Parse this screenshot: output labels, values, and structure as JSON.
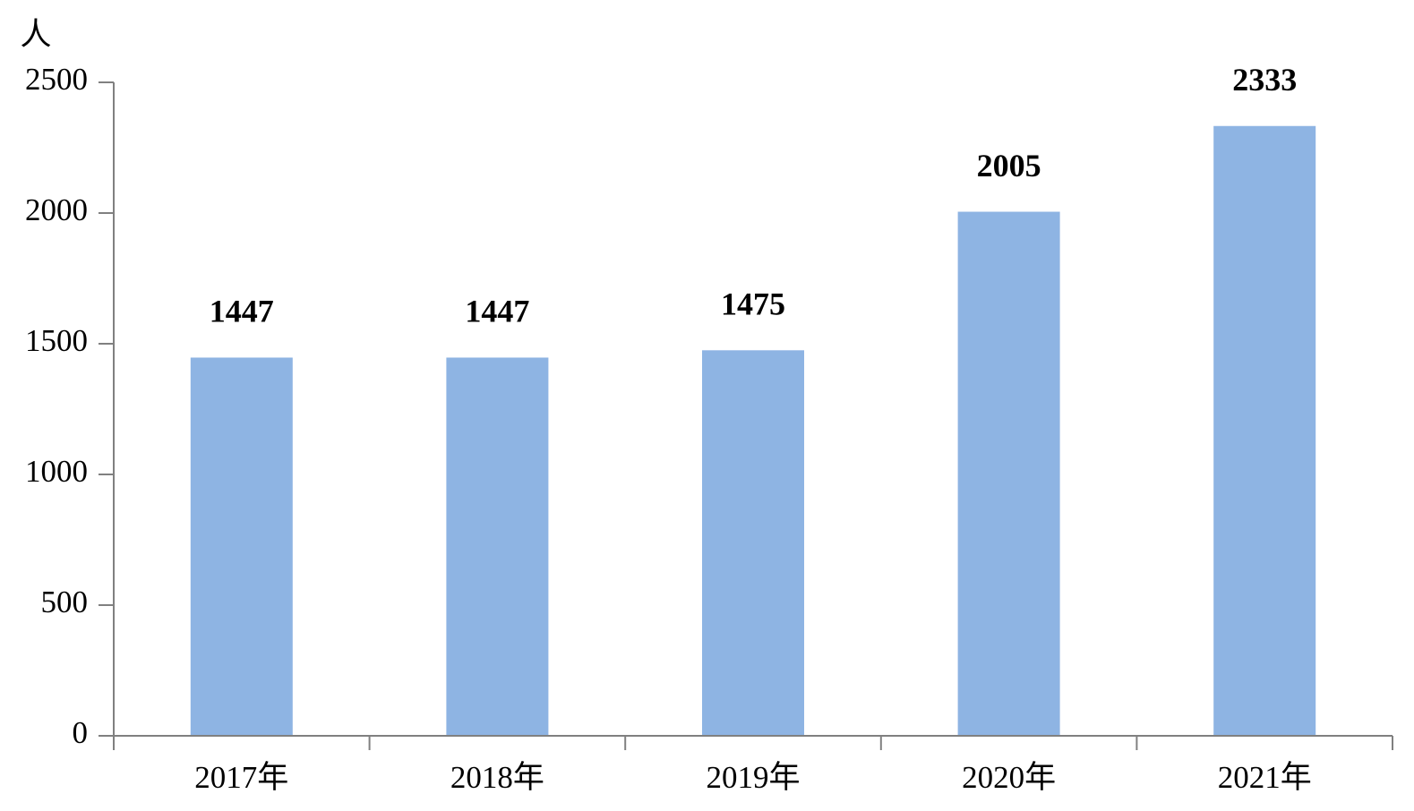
{
  "chart_data": {
    "type": "bar",
    "y_label": "人",
    "categories": [
      "2017年",
      "2018年",
      "2019年",
      "2020年",
      "2021年"
    ],
    "values": [
      1447,
      1447,
      1475,
      2005,
      2333
    ],
    "color": "#8eb4e3",
    "ylim": [
      0,
      2500
    ],
    "yticks": [
      0,
      500,
      1000,
      1500,
      2000,
      2500
    ],
    "grid": false
  }
}
